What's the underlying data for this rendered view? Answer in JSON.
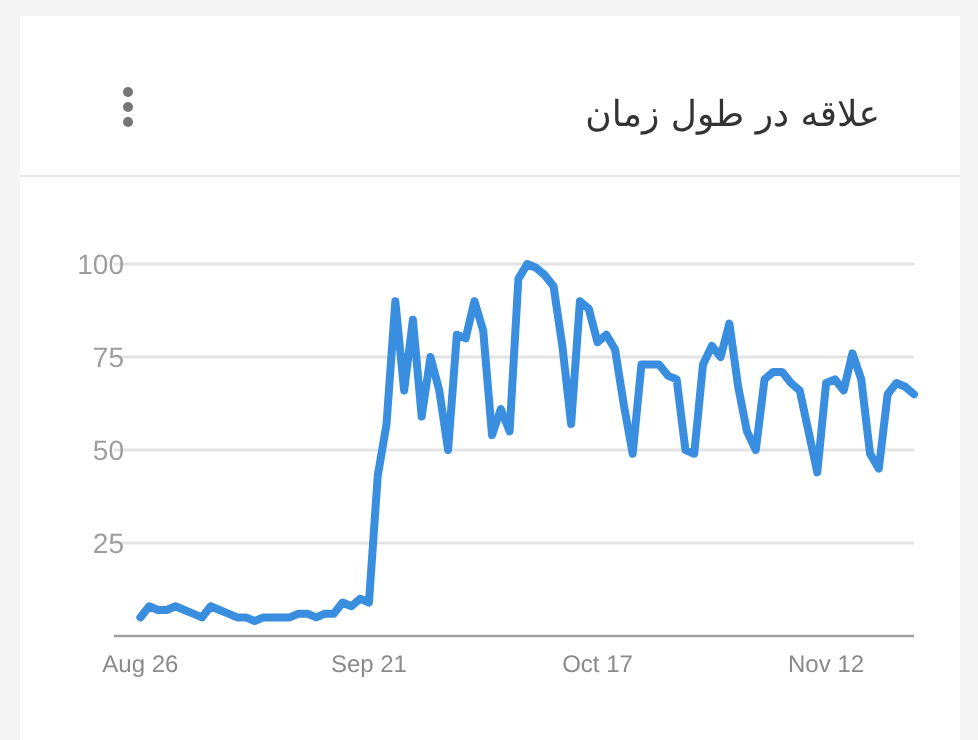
{
  "chart_data": {
    "type": "line",
    "title": "علاقه در طول زمان",
    "x": [
      "--08-26",
      "--08-27",
      "--08-28",
      "--08-29",
      "--08-30",
      "--08-31",
      "--09-01",
      "--09-02",
      "--09-03",
      "--09-04",
      "--09-05",
      "--09-06",
      "--09-07",
      "--09-08",
      "--09-09",
      "--09-10",
      "--09-11",
      "--09-12",
      "--09-13",
      "--09-14",
      "--09-15",
      "--09-16",
      "--09-17",
      "--09-18",
      "--09-19",
      "--09-20",
      "--09-21",
      "--09-22",
      "--09-23",
      "--09-24",
      "--09-25",
      "--09-26",
      "--09-27",
      "--09-28",
      "--09-29",
      "--09-30",
      "--10-01",
      "--10-02",
      "--10-03",
      "--10-04",
      "--10-05",
      "--10-06",
      "--10-07",
      "--10-08",
      "--10-09",
      "--10-10",
      "--10-11",
      "--10-12",
      "--10-13",
      "--10-14",
      "--10-15",
      "--10-16",
      "--10-17",
      "--10-18",
      "--10-19",
      "--10-20",
      "--10-21",
      "--10-22",
      "--10-23",
      "--10-24",
      "--10-25",
      "--10-26",
      "--10-27",
      "--10-28",
      "--10-29",
      "--10-30",
      "--10-31",
      "--11-01",
      "--11-02",
      "--11-03",
      "--11-04",
      "--11-05",
      "--11-06",
      "--11-07",
      "--11-08",
      "--11-09",
      "--11-10",
      "--11-11",
      "--11-12",
      "--11-13",
      "--11-14",
      "--11-15",
      "--11-16",
      "--11-17",
      "--11-18",
      "--11-19",
      "--11-20",
      "--11-21",
      "--11-22"
    ],
    "series": [
      {
        "color": "#3a8ee0",
        "values": [
          5,
          8,
          7,
          7,
          8,
          7,
          6,
          5,
          8,
          7,
          6,
          5,
          5,
          4,
          5,
          5,
          5,
          5,
          6,
          6,
          5,
          6,
          6,
          9,
          8,
          10,
          9,
          43,
          57,
          90,
          66,
          85,
          59,
          75,
          66,
          50,
          81,
          80,
          90,
          82,
          54,
          61,
          55,
          96,
          100,
          99,
          97,
          94,
          78,
          57,
          90,
          88,
          79,
          81,
          77,
          62,
          49,
          73,
          73,
          73,
          70,
          69,
          50,
          49,
          73,
          78,
          75,
          84,
          67,
          55,
          50,
          69,
          71,
          71,
          68,
          66,
          55,
          44,
          68,
          69,
          66,
          76,
          69,
          49,
          45,
          65,
          68,
          67,
          65
        ]
      }
    ],
    "xlim": [
      "--08-23",
      "--11-22"
    ],
    "xticks": [
      {
        "value": "--08-26",
        "label": "Aug 26"
      },
      {
        "value": "--09-21",
        "label": "Sep 21"
      },
      {
        "value": "--10-17",
        "label": "Oct 17"
      },
      {
        "value": "--11-12",
        "label": "Nov 12"
      }
    ],
    "ylim": [
      0,
      100
    ],
    "yticks": [
      25,
      50,
      75,
      100
    ],
    "grid": "y",
    "line_style": "solid",
    "marker": "none"
  }
}
